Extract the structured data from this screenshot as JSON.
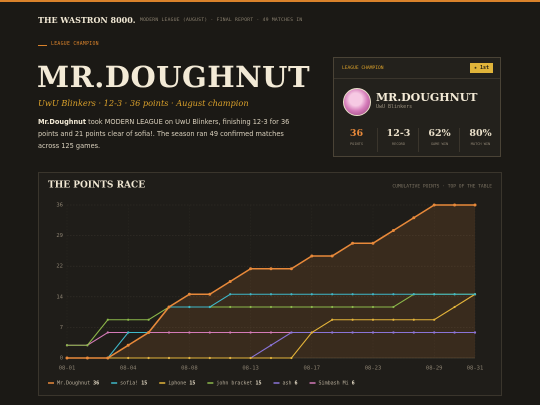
{
  "header": {
    "brand": "THE WASTRON 8000.",
    "meta": "MODERN LEAGUE (AUGUST) · FINAL REPORT · 49 MATCHES IN"
  },
  "hero": {
    "label": "LEAGUE CHAMPION",
    "name": "MR.DOUGHNUT",
    "subtitle": "UwU Blinkers · 12-3 · 36 points · August champion",
    "lead": "Mr.Doughnut",
    "text": "took MODERN LEAGUE on UwU Blinkers, finishing 12-3 for 36 points and 21 points clear of sofia!. The season ran 49 confirmed matches across 125 games."
  },
  "card": {
    "label": "LEAGUE CHAMPION",
    "badge": "★ 1st",
    "name": "MR.DOUGHNUT",
    "team": "UwU Blinkers",
    "stats": [
      {
        "value": "36",
        "label": "POINTS"
      },
      {
        "value": "12-3",
        "label": "RECORD"
      },
      {
        "value": "62%",
        "label": "GAME WIN"
      },
      {
        "value": "80%",
        "label": "MATCH WIN"
      }
    ]
  },
  "chart_data": {
    "type": "line",
    "title": "THE POINTS RACE",
    "subtitle": "CUMULATIVE POINTS · TOP OF THE TABLE",
    "categories": [
      "08-01",
      null,
      null,
      "08-04",
      null,
      null,
      "08-08",
      null,
      null,
      "08-13",
      null,
      null,
      "08-17",
      null,
      null,
      "08-23",
      null,
      null,
      "08-29",
      null,
      "08-31"
    ],
    "ylim": [
      0,
      36
    ],
    "yticks": [
      0,
      {
        "value": 7.2,
        "label": "7"
      },
      {
        "value": 14.4,
        "label": "14"
      },
      {
        "value": 21.6,
        "label": "22"
      },
      {
        "value": 28.8,
        "label": "29"
      },
      36
    ],
    "grid": true,
    "series": [
      {
        "name": "Mr.Doughnut",
        "color": "#e8893a",
        "values": [
          0,
          0,
          0,
          3,
          6,
          12,
          15,
          15,
          18,
          21,
          21,
          21,
          24,
          24,
          27,
          27,
          30,
          33,
          36,
          36,
          36
        ]
      },
      {
        "name": "sofia!",
        "color": "#3fb8c9",
        "values": [
          0,
          0,
          0,
          6,
          6,
          12,
          12,
          12,
          15,
          15,
          15,
          15,
          15,
          15,
          15,
          15,
          15,
          15,
          15,
          15,
          15
        ]
      },
      {
        "name": "iphone",
        "color": "#e4b43a",
        "values": [
          0,
          0,
          0,
          0,
          0,
          0,
          0,
          0,
          0,
          0,
          0,
          0,
          6,
          9,
          9,
          9,
          9,
          9,
          9,
          12,
          15
        ]
      },
      {
        "name": "john bracket",
        "color": "#8cb84a",
        "values": [
          3,
          3,
          9,
          9,
          9,
          12,
          12,
          12,
          12,
          12,
          12,
          12,
          12,
          12,
          12,
          12,
          12,
          15,
          15,
          15,
          15
        ]
      },
      {
        "name": "ash",
        "color": "#8a74d8",
        "values": [
          0,
          0,
          0,
          0,
          0,
          0,
          0,
          0,
          0,
          0,
          3,
          6,
          6,
          6,
          6,
          6,
          6,
          6,
          6,
          6,
          6
        ]
      },
      {
        "name": "Simbash Mi",
        "color": "#d47ab8",
        "values": [
          3,
          3,
          6,
          6,
          6,
          6,
          6,
          6,
          6,
          6,
          6,
          6,
          6,
          6,
          6,
          6,
          6,
          6,
          6,
          6,
          6
        ]
      }
    ]
  }
}
